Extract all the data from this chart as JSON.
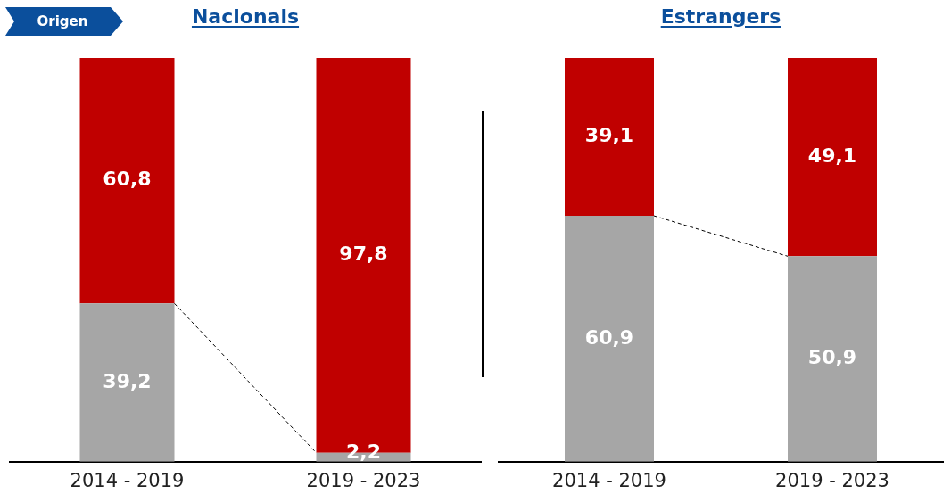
{
  "chart_data": [
    {
      "type": "bar",
      "title": "Nacionals",
      "stacked": true,
      "legend": false,
      "grid": false,
      "tick_labels": "x",
      "annotations": [
        "Origen"
      ],
      "categories": [
        "2014 - 2019",
        "2019 - 2023"
      ],
      "series": [
        {
          "color": "#a6a6a6",
          "values": [
            39.2,
            2.2
          ],
          "value_labels": [
            "39,2",
            "2,2"
          ]
        },
        {
          "color": "#c00000",
          "values": [
            60.8,
            97.8
          ],
          "value_labels": [
            "60,8",
            "97,8"
          ]
        }
      ]
    },
    {
      "type": "bar",
      "title": "Estrangers",
      "stacked": true,
      "legend": false,
      "grid": false,
      "tick_labels": "x",
      "categories": [
        "2014 - 2019",
        "2019 - 2023"
      ],
      "series": [
        {
          "color": "#a6a6a6",
          "values": [
            60.9,
            50.9
          ],
          "value_labels": [
            "60,9",
            "50,9"
          ]
        },
        {
          "color": "#c00000",
          "values": [
            39.1,
            49.1
          ],
          "value_labels": [
            "39,1",
            "49,1"
          ]
        }
      ]
    }
  ]
}
